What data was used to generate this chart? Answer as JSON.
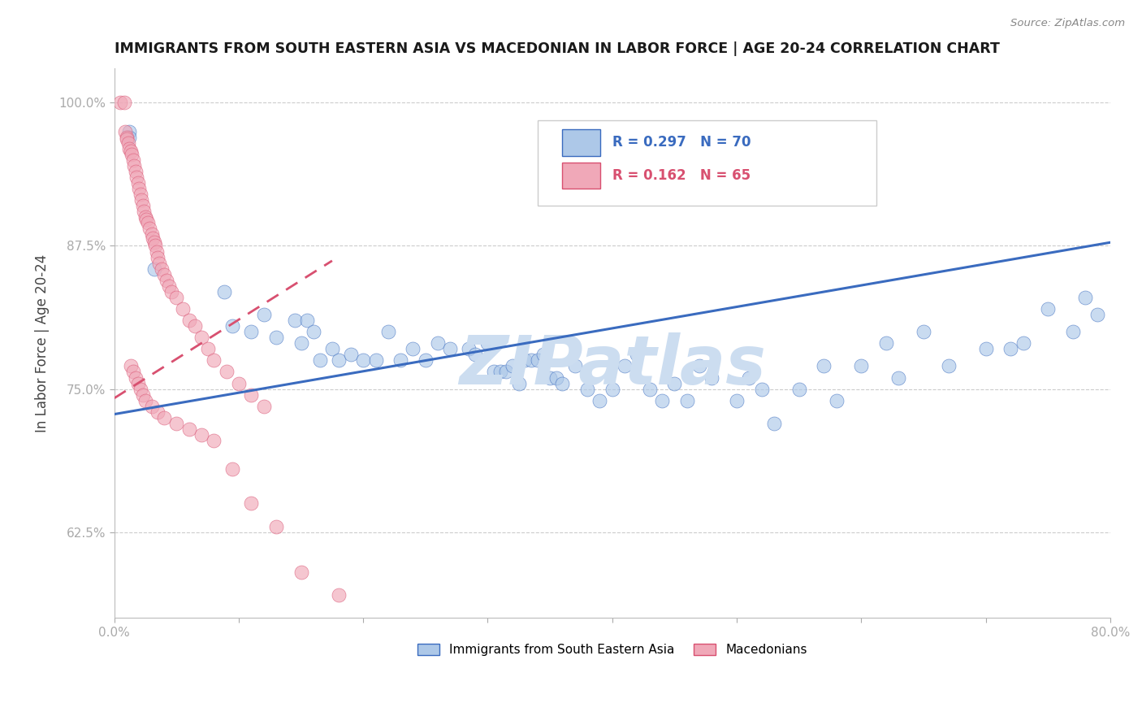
{
  "title": "IMMIGRANTS FROM SOUTH EASTERN ASIA VS MACEDONIAN IN LABOR FORCE | AGE 20-24 CORRELATION CHART",
  "source_text": "Source: ZipAtlas.com",
  "ylabel": "In Labor Force | Age 20-24",
  "xlim": [
    0.0,
    0.8
  ],
  "ylim": [
    0.55,
    1.03
  ],
  "xticks": [
    0.0,
    0.1,
    0.2,
    0.3,
    0.4,
    0.5,
    0.6,
    0.7,
    0.8
  ],
  "xticklabels": [
    "0.0%",
    "",
    "",
    "",
    "",
    "",
    "",
    "",
    "80.0%"
  ],
  "yticks": [
    0.625,
    0.75,
    0.875,
    1.0
  ],
  "yticklabels": [
    "62.5%",
    "75.0%",
    "87.5%",
    "100.0%"
  ],
  "blue_R": 0.297,
  "blue_N": 70,
  "pink_R": 0.162,
  "pink_N": 65,
  "blue_color": "#adc8e8",
  "pink_color": "#f0a8b8",
  "blue_line_color": "#3a6bbf",
  "pink_line_color": "#d85070",
  "watermark": "ZIPatlas",
  "watermark_color": "#ccddf0",
  "legend_blue_label": "Immigrants from South Eastern Asia",
  "legend_pink_label": "Macedonians",
  "blue_line_x0": 0.0,
  "blue_line_y0": 0.728,
  "blue_line_x1": 0.8,
  "blue_line_y1": 0.878,
  "pink_line_x0": 0.0,
  "pink_line_y0": 0.742,
  "pink_line_x1": 0.175,
  "pink_line_y1": 0.862,
  "blue_scatter_x": [
    0.012,
    0.012,
    0.032,
    0.088,
    0.095,
    0.11,
    0.12,
    0.13,
    0.145,
    0.15,
    0.155,
    0.16,
    0.165,
    0.175,
    0.18,
    0.19,
    0.2,
    0.21,
    0.22,
    0.23,
    0.24,
    0.25,
    0.26,
    0.27,
    0.285,
    0.29,
    0.3,
    0.305,
    0.31,
    0.315,
    0.32,
    0.325,
    0.33,
    0.335,
    0.34,
    0.345,
    0.35,
    0.355,
    0.36,
    0.37,
    0.38,
    0.39,
    0.4,
    0.41,
    0.42,
    0.43,
    0.44,
    0.45,
    0.46,
    0.47,
    0.48,
    0.5,
    0.51,
    0.52,
    0.53,
    0.55,
    0.57,
    0.58,
    0.6,
    0.62,
    0.63,
    0.65,
    0.67,
    0.7,
    0.72,
    0.73,
    0.75,
    0.77,
    0.78,
    0.79
  ],
  "blue_scatter_y": [
    0.975,
    0.97,
    0.855,
    0.835,
    0.805,
    0.8,
    0.815,
    0.795,
    0.81,
    0.79,
    0.81,
    0.8,
    0.775,
    0.785,
    0.775,
    0.78,
    0.775,
    0.775,
    0.8,
    0.775,
    0.785,
    0.775,
    0.79,
    0.785,
    0.785,
    0.78,
    0.79,
    0.765,
    0.765,
    0.765,
    0.77,
    0.755,
    0.775,
    0.775,
    0.775,
    0.78,
    0.76,
    0.76,
    0.755,
    0.77,
    0.75,
    0.74,
    0.75,
    0.77,
    0.78,
    0.75,
    0.74,
    0.755,
    0.74,
    0.77,
    0.76,
    0.74,
    0.76,
    0.75,
    0.72,
    0.75,
    0.77,
    0.74,
    0.77,
    0.79,
    0.76,
    0.8,
    0.77,
    0.785,
    0.785,
    0.79,
    0.82,
    0.8,
    0.83,
    0.815
  ],
  "pink_scatter_x": [
    0.005,
    0.008,
    0.009,
    0.01,
    0.01,
    0.011,
    0.012,
    0.013,
    0.014,
    0.015,
    0.016,
    0.017,
    0.018,
    0.019,
    0.02,
    0.021,
    0.022,
    0.023,
    0.024,
    0.025,
    0.026,
    0.027,
    0.028,
    0.03,
    0.031,
    0.032,
    0.033,
    0.034,
    0.035,
    0.036,
    0.038,
    0.04,
    0.042,
    0.044,
    0.046,
    0.05,
    0.055,
    0.06,
    0.065,
    0.07,
    0.075,
    0.08,
    0.09,
    0.1,
    0.11,
    0.12,
    0.013,
    0.015,
    0.017,
    0.019,
    0.021,
    0.023,
    0.025,
    0.03,
    0.035,
    0.04,
    0.05,
    0.06,
    0.07,
    0.08,
    0.095,
    0.11,
    0.13,
    0.15,
    0.18
  ],
  "pink_scatter_y": [
    1.0,
    1.0,
    0.975,
    0.97,
    0.968,
    0.965,
    0.96,
    0.958,
    0.955,
    0.95,
    0.945,
    0.94,
    0.935,
    0.93,
    0.925,
    0.92,
    0.915,
    0.91,
    0.905,
    0.9,
    0.898,
    0.895,
    0.89,
    0.885,
    0.882,
    0.878,
    0.875,
    0.87,
    0.865,
    0.86,
    0.855,
    0.85,
    0.845,
    0.84,
    0.835,
    0.83,
    0.82,
    0.81,
    0.805,
    0.795,
    0.785,
    0.775,
    0.765,
    0.755,
    0.745,
    0.735,
    0.77,
    0.765,
    0.76,
    0.755,
    0.75,
    0.745,
    0.74,
    0.735,
    0.73,
    0.725,
    0.72,
    0.715,
    0.71,
    0.705,
    0.68,
    0.65,
    0.63,
    0.59,
    0.57
  ]
}
